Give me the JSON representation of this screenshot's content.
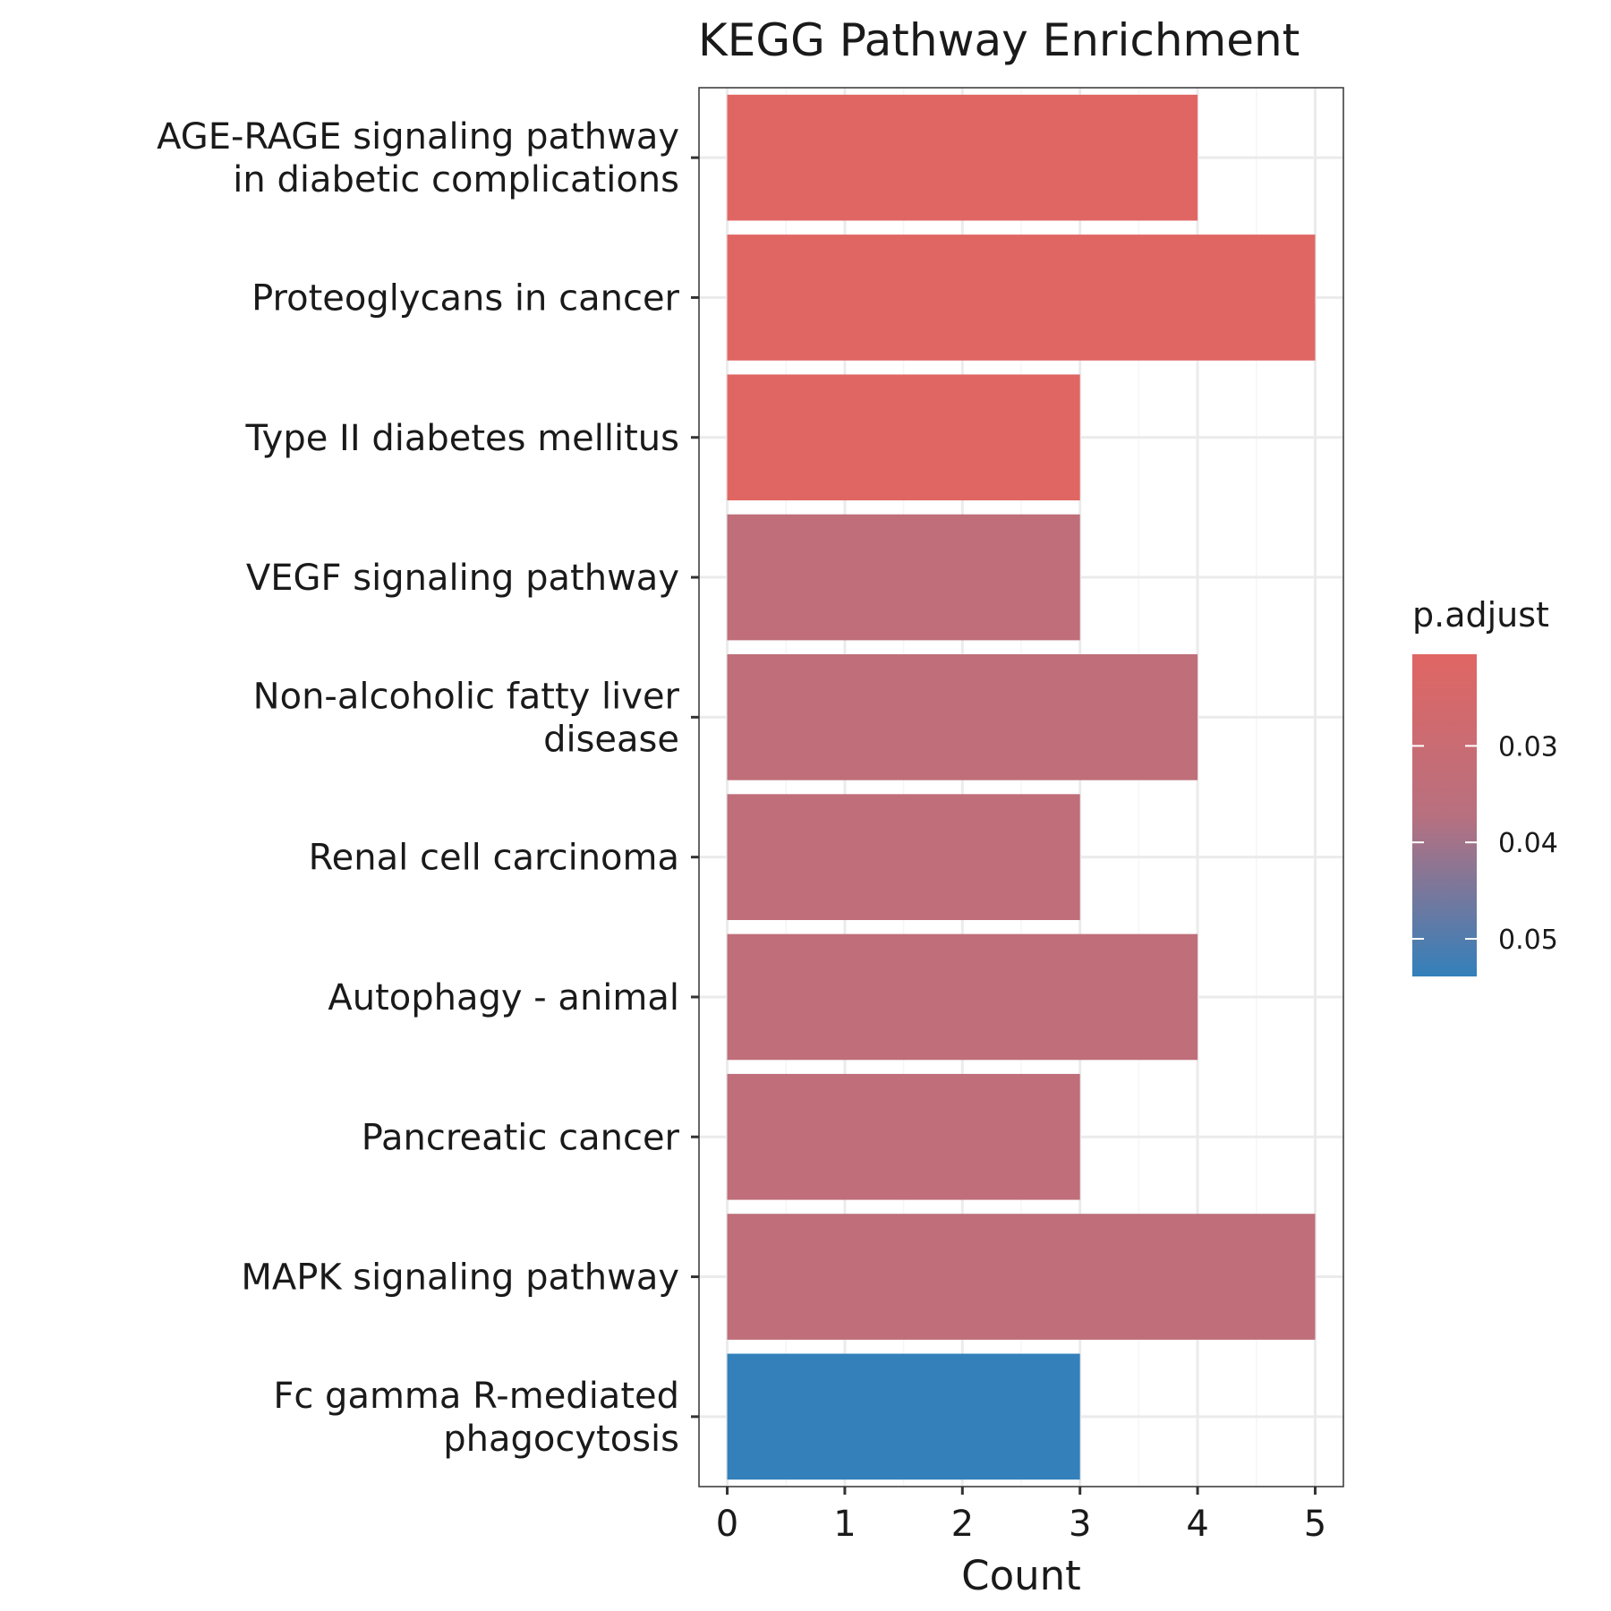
{
  "chart_data": {
    "type": "bar",
    "orientation": "horizontal",
    "title": "KEGG Pathway Enrichment",
    "xlabel": "Count",
    "ylabel": "",
    "xlim": [
      -0.24,
      5.24
    ],
    "x_ticks": [
      0,
      1,
      2,
      3,
      4,
      5
    ],
    "grid": true,
    "legend_position": "right",
    "categories": [
      "AGE-RAGE signaling pathway\nin diabetic complications",
      "Proteoglycans in cancer",
      "Type II diabetes mellitus",
      "VEGF signaling pathway",
      "Non-alcoholic fatty liver\ndisease",
      "Renal cell carcinoma",
      "Autophagy - animal",
      "Pancreatic cancer",
      "MAPK signaling pathway",
      "Fc gamma R-mediated\nphagocytosis"
    ],
    "values": [
      4,
      5,
      3,
      3,
      4,
      3,
      4,
      3,
      5,
      3
    ],
    "p_adjust": [
      0.0205,
      0.0205,
      0.0205,
      0.0341,
      0.0341,
      0.0341,
      0.0341,
      0.0341,
      0.0341,
      0.0539
    ],
    "legend": {
      "title": "p.adjust",
      "range": [
        0.0205,
        0.0539
      ],
      "ticks": [
        0.03,
        0.04,
        0.05
      ],
      "tick_labels": [
        "0.03",
        "0.04",
        "0.05"
      ],
      "color_low": "#e06663",
      "color_mid": "#b8707f",
      "color_high": "#3380bb"
    },
    "colors": {
      "panel_border": "#333333",
      "grid_major": "#ebebeb",
      "grid_minor": "#f5f5f5",
      "text": "#1a1a1a"
    }
  }
}
